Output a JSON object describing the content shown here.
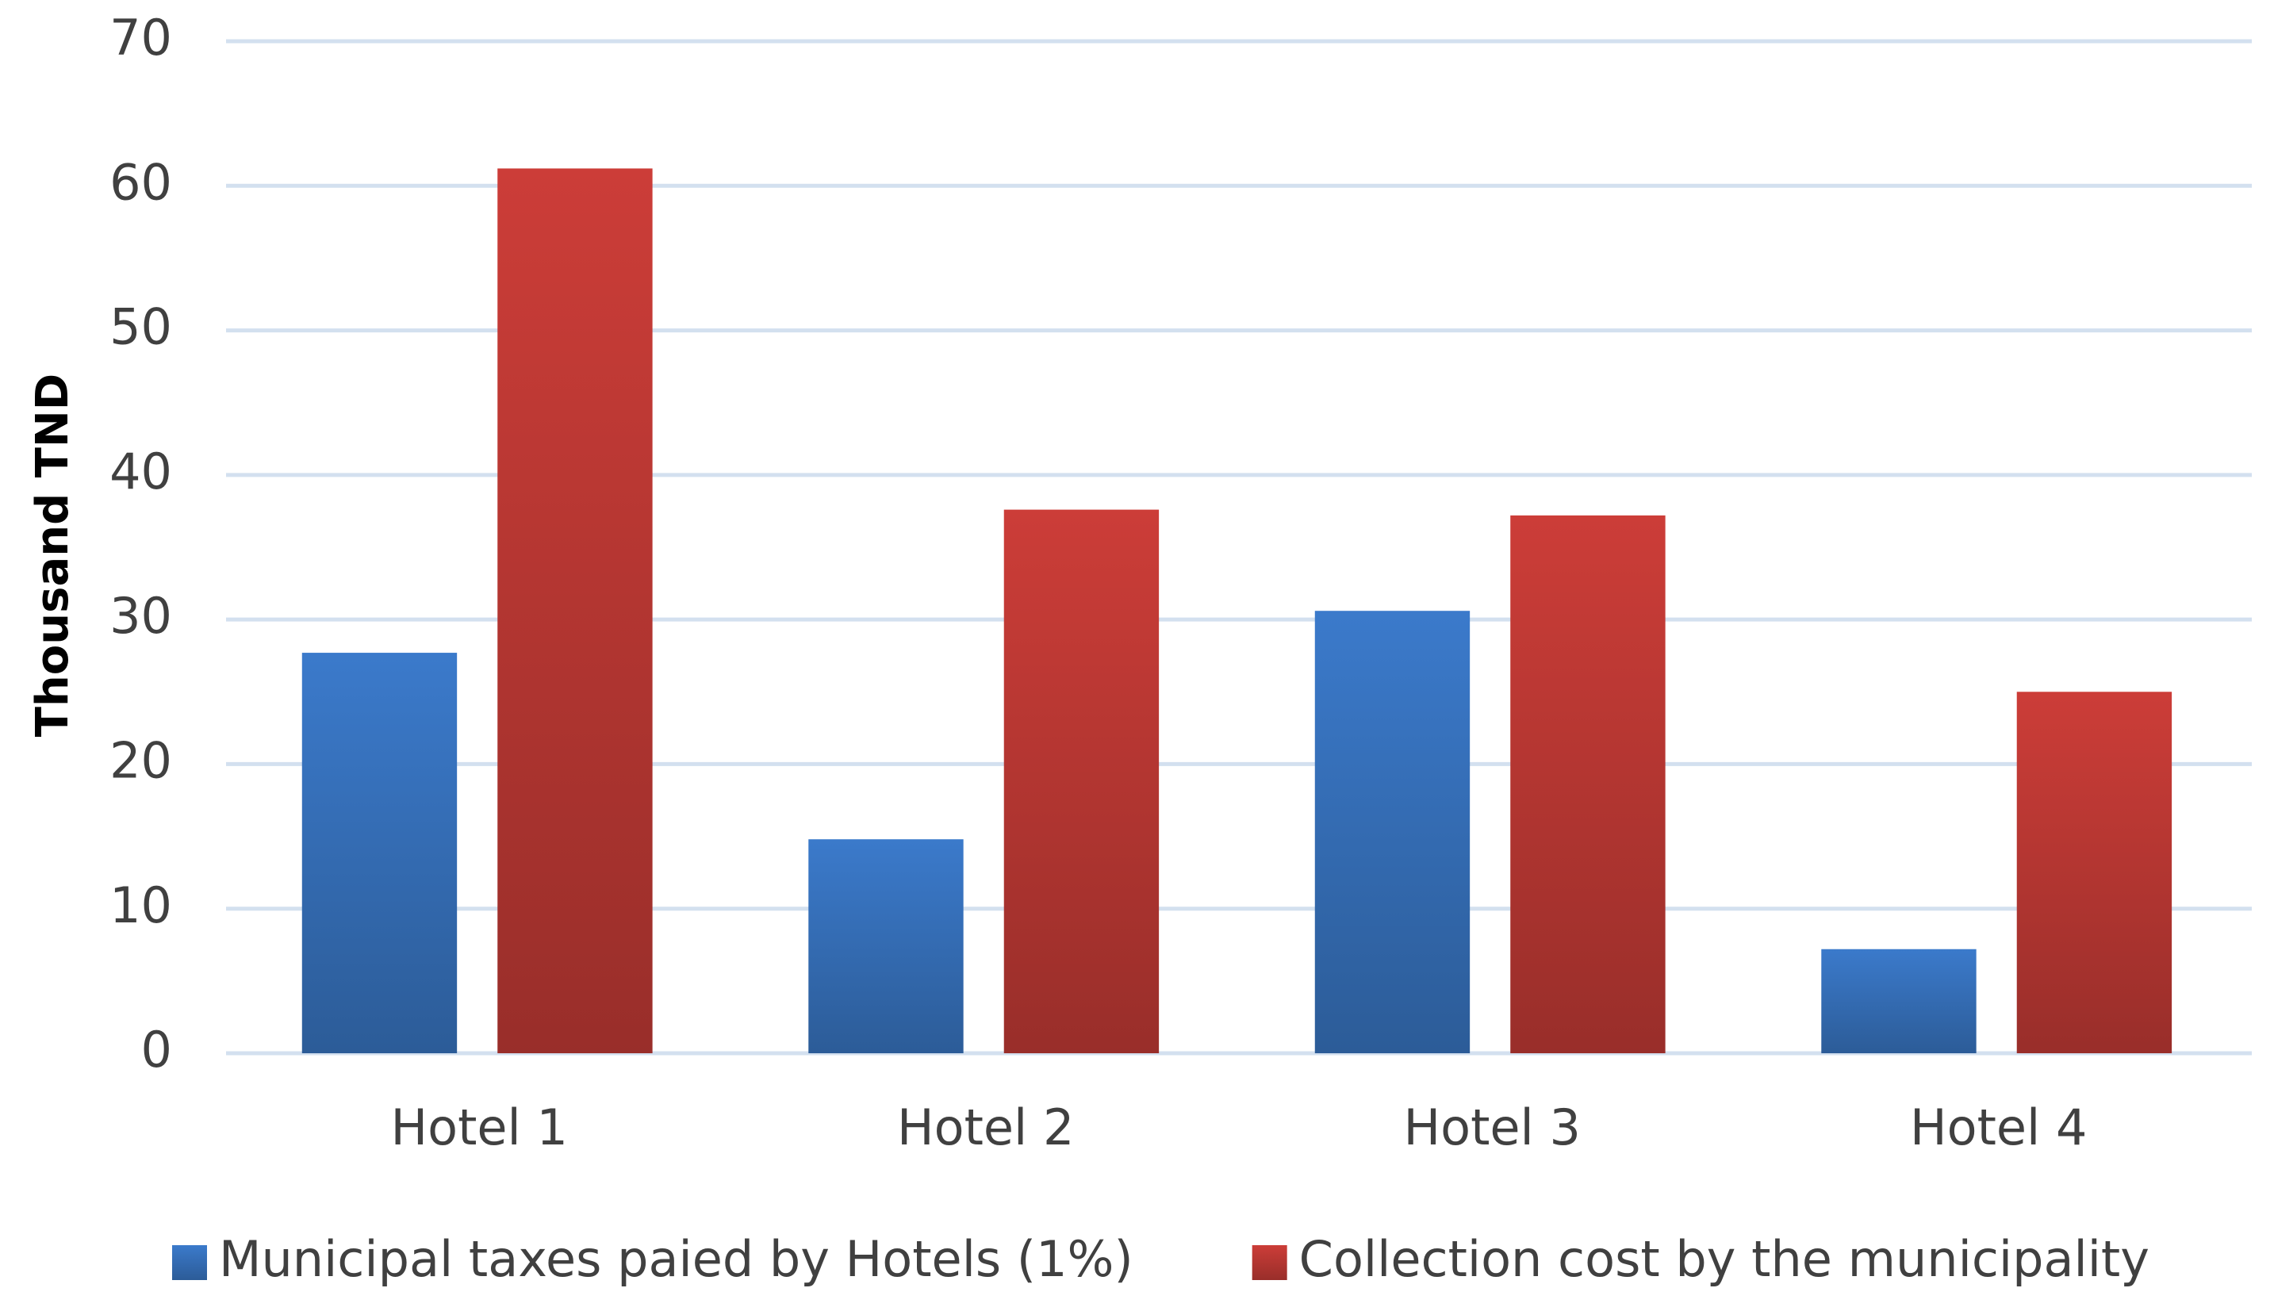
{
  "chart_data": {
    "type": "bar",
    "y_label": "Thousand  TND",
    "categories": [
      "Hotel 1",
      "Hotel 2",
      "Hotel 3",
      "Hotel 4"
    ],
    "series": [
      {
        "name": "Municipal taxes paied by Hotels (1%)",
        "color": "#3b7acb",
        "values": [
          27.7,
          14.8,
          30.6,
          7.2
        ]
      },
      {
        "name": "Collection cost by the municipality",
        "color": "#cc3d38",
        "values": [
          61.2,
          37.6,
          37.2,
          25.0
        ]
      }
    ],
    "ylim": [
      0,
      70
    ],
    "yticks": [
      0,
      10,
      20,
      30,
      40,
      50,
      60,
      70
    ],
    "grid": true,
    "legend": "bottom"
  }
}
